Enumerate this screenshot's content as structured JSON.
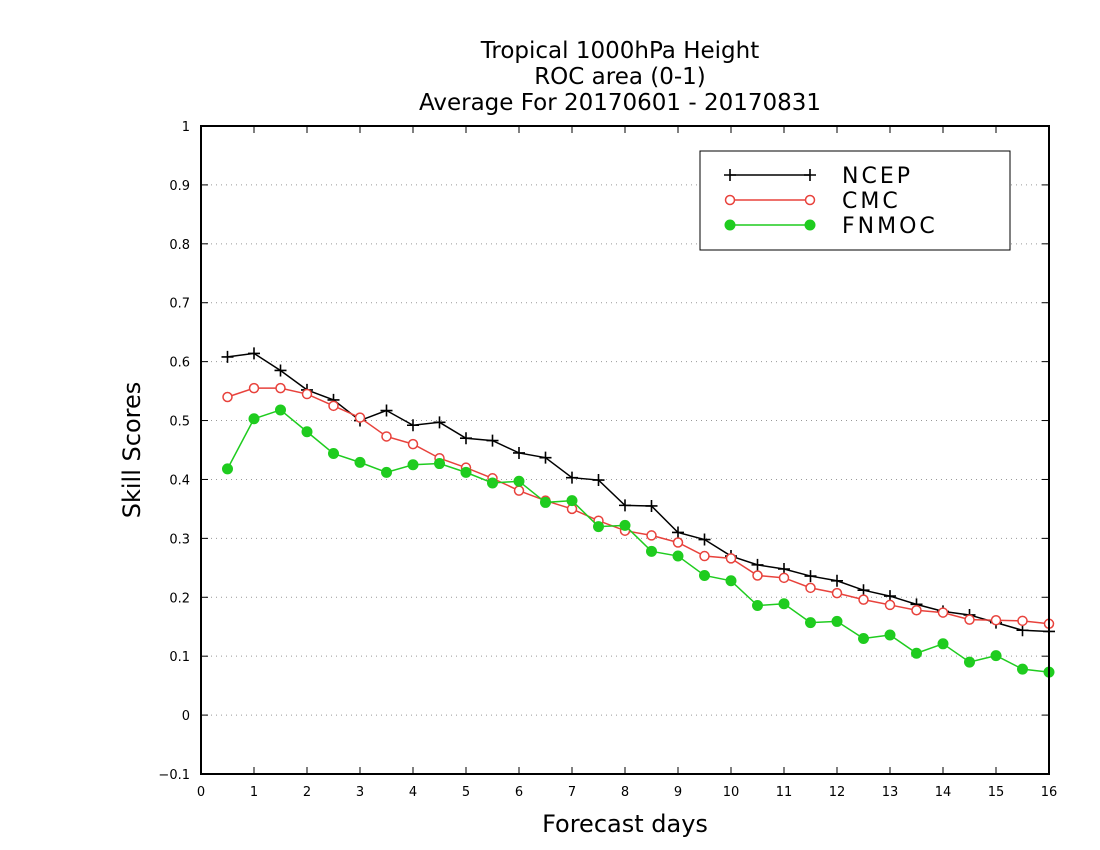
{
  "chart_data": {
    "type": "line",
    "title_lines": [
      "Tropical 1000hPa Height",
      "ROC area (0-1)",
      "Average For 20170601 - 20170831"
    ],
    "xlabel": "Forecast days",
    "ylabel": "Skill Scores",
    "xlim": [
      0,
      16
    ],
    "ylim": [
      -0.1,
      1
    ],
    "xticks": [
      "0",
      "1",
      "2",
      "3",
      "4",
      "5",
      "6",
      "7",
      "8",
      "9",
      "10",
      "11",
      "12",
      "13",
      "14",
      "15",
      "16"
    ],
    "yticks": [
      "−0.1",
      "0",
      "0.1",
      "0.2",
      "0.3",
      "0.4",
      "0.5",
      "0.6",
      "0.7",
      "0.8",
      "0.9",
      "1"
    ],
    "grid": "horizontal dotted",
    "legend_position": "top-right",
    "x": [
      0.5,
      1,
      1.5,
      2,
      2.5,
      3,
      3.5,
      4,
      4.5,
      5,
      5.5,
      6,
      6.5,
      7,
      7.5,
      8,
      8.5,
      9,
      9.5,
      10,
      10.5,
      11,
      11.5,
      12,
      12.5,
      13,
      13.5,
      14,
      14.5,
      15,
      15.5,
      16
    ],
    "series": [
      {
        "name": "NCEP",
        "color": "#000000",
        "marker": "plus",
        "values": [
          0.608,
          0.614,
          0.585,
          0.552,
          0.535,
          0.5,
          0.517,
          0.492,
          0.497,
          0.47,
          0.466,
          0.445,
          0.437,
          0.403,
          0.399,
          0.356,
          0.355,
          0.31,
          0.298,
          0.27,
          0.255,
          0.248,
          0.236,
          0.228,
          0.212,
          0.202,
          0.188,
          0.176,
          0.17,
          0.157,
          0.144,
          0.142
        ]
      },
      {
        "name": "CMC",
        "color": "#e8423c",
        "marker": "open-circle",
        "values": [
          0.54,
          0.555,
          0.555,
          0.545,
          0.525,
          0.505,
          0.473,
          0.46,
          0.436,
          0.42,
          0.402,
          0.381,
          0.364,
          0.35,
          0.33,
          0.313,
          0.305,
          0.293,
          0.27,
          0.266,
          0.237,
          0.233,
          0.216,
          0.207,
          0.196,
          0.187,
          0.178,
          0.174,
          0.162,
          0.161,
          0.16,
          0.155
        ]
      },
      {
        "name": "FNMOC",
        "color": "#1fcc1f",
        "marker": "filled-circle",
        "values": [
          0.418,
          0.503,
          0.518,
          0.481,
          0.444,
          0.429,
          0.412,
          0.425,
          0.427,
          0.412,
          0.394,
          0.397,
          0.361,
          0.364,
          0.32,
          0.322,
          0.278,
          0.27,
          0.237,
          0.228,
          0.186,
          0.189,
          0.157,
          0.159,
          0.13,
          0.136,
          0.105,
          0.121,
          0.09,
          0.101,
          0.078,
          0.073
        ]
      }
    ]
  }
}
